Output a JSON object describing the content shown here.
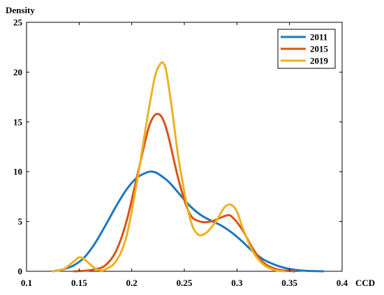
{
  "chart_data": {
    "type": "line",
    "title": "",
    "xlabel": "CCD",
    "ylabel": "Density",
    "xlim": [
      0.1,
      0.4
    ],
    "ylim": [
      0,
      25
    ],
    "xticks": [
      0.1,
      0.15,
      0.2,
      0.25,
      0.3,
      0.35,
      0.4
    ],
    "xtick_labels": [
      "0.1",
      "0.15",
      "0.2",
      "0.25",
      "0.3",
      "0.35",
      "0.4"
    ],
    "yticks": [
      0,
      5,
      10,
      15,
      20,
      25
    ],
    "ytick_labels": [
      "0",
      "5",
      "10",
      "15",
      "20",
      "25"
    ],
    "grid": false,
    "legend_position": "top-right",
    "series": [
      {
        "name": "2011",
        "color": "#1f77bf",
        "x": [
          0.125,
          0.135,
          0.145,
          0.155,
          0.165,
          0.175,
          0.185,
          0.195,
          0.205,
          0.215,
          0.22,
          0.225,
          0.235,
          0.245,
          0.255,
          0.265,
          0.275,
          0.285,
          0.295,
          0.305,
          0.315,
          0.325,
          0.335,
          0.345,
          0.355,
          0.365,
          0.375,
          0.382
        ],
        "y": [
          0.0,
          0.2,
          0.6,
          1.4,
          2.8,
          4.6,
          6.5,
          8.2,
          9.4,
          9.95,
          10.0,
          9.8,
          9.0,
          7.8,
          6.6,
          5.7,
          5.1,
          4.6,
          3.9,
          3.0,
          2.0,
          1.2,
          0.7,
          0.35,
          0.15,
          0.05,
          0.02,
          0.0
        ]
      },
      {
        "name": "2015",
        "color": "#d95319",
        "x": [
          0.145,
          0.155,
          0.165,
          0.175,
          0.185,
          0.195,
          0.205,
          0.215,
          0.22,
          0.225,
          0.23,
          0.235,
          0.245,
          0.255,
          0.265,
          0.275,
          0.285,
          0.29,
          0.295,
          0.305,
          0.315,
          0.325,
          0.335,
          0.345,
          0.355
        ],
        "y": [
          0.0,
          0.05,
          0.2,
          0.6,
          2.0,
          5.0,
          9.5,
          14.0,
          15.4,
          15.8,
          15.2,
          13.5,
          9.0,
          5.8,
          5.0,
          5.0,
          5.4,
          5.6,
          5.5,
          4.2,
          2.3,
          0.9,
          0.3,
          0.08,
          0.0
        ]
      },
      {
        "name": "2019",
        "color": "#edb120",
        "x": [
          0.125,
          0.135,
          0.145,
          0.15,
          0.155,
          0.165,
          0.17,
          0.175,
          0.185,
          0.195,
          0.205,
          0.215,
          0.222,
          0.227,
          0.23,
          0.233,
          0.238,
          0.245,
          0.255,
          0.262,
          0.27,
          0.28,
          0.288,
          0.294,
          0.3,
          0.305,
          0.315,
          0.325,
          0.335,
          0.345
        ],
        "y": [
          0.0,
          0.2,
          1.0,
          1.4,
          1.2,
          0.3,
          0.1,
          0.2,
          1.0,
          3.5,
          9.0,
          15.5,
          19.5,
          20.8,
          20.9,
          20.0,
          16.5,
          11.0,
          5.5,
          3.8,
          3.8,
          5.0,
          6.4,
          6.7,
          6.0,
          4.5,
          2.0,
          0.7,
          0.15,
          0.0
        ]
      }
    ]
  }
}
